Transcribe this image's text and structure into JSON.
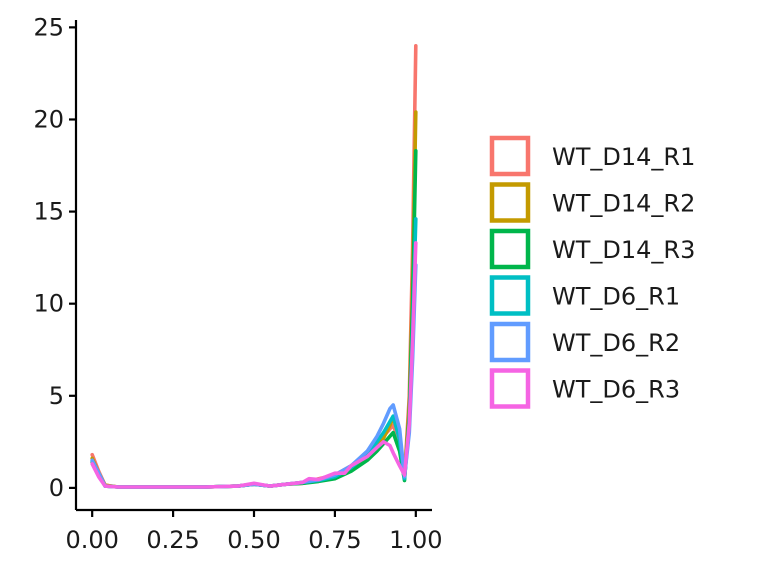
{
  "chart_data": {
    "type": "line",
    "title": "",
    "xlabel": "",
    "ylabel": "",
    "xlim": [
      -0.05,
      1.05
    ],
    "ylim": [
      -1.2,
      25.4
    ],
    "x_ticks": [
      0,
      0.25,
      0.5,
      0.75,
      1.0
    ],
    "x_tick_labels": [
      "0.00",
      "0.25",
      "0.50",
      "0.75",
      "1.00"
    ],
    "y_ticks": [
      0,
      5,
      10,
      15,
      20,
      25
    ],
    "y_tick_labels": [
      "0",
      "5",
      "10",
      "15",
      "20",
      "25"
    ],
    "grid": false,
    "legend_position": "right",
    "series": [
      {
        "name": "WT_D14_R1",
        "color": "#F8766D",
        "x": [
          0,
          0.02,
          0.04,
          0.08,
          0.15,
          0.25,
          0.35,
          0.45,
          0.5,
          0.55,
          0.6,
          0.65,
          0.7,
          0.75,
          0.8,
          0.85,
          0.88,
          0.9,
          0.92,
          0.93,
          0.95,
          0.965,
          0.98,
          0.99,
          1.0
        ],
        "y": [
          1.8,
          0.9,
          0.15,
          0.05,
          0.05,
          0.05,
          0.05,
          0.1,
          0.2,
          0.1,
          0.2,
          0.3,
          0.5,
          0.7,
          1.2,
          1.8,
          2.4,
          2.8,
          3.2,
          3.4,
          2.5,
          0.6,
          5.0,
          13.0,
          24.0
        ]
      },
      {
        "name": "WT_D14_R2",
        "color": "#C49A00",
        "x": [
          0,
          0.02,
          0.04,
          0.08,
          0.15,
          0.25,
          0.35,
          0.45,
          0.5,
          0.55,
          0.6,
          0.65,
          0.7,
          0.75,
          0.8,
          0.85,
          0.88,
          0.9,
          0.92,
          0.93,
          0.95,
          0.965,
          0.98,
          0.99,
          1.0
        ],
        "y": [
          1.6,
          0.8,
          0.15,
          0.05,
          0.05,
          0.05,
          0.05,
          0.1,
          0.2,
          0.1,
          0.2,
          0.25,
          0.4,
          0.6,
          1.0,
          1.6,
          2.2,
          2.7,
          3.4,
          3.8,
          2.8,
          0.5,
          4.5,
          11.0,
          20.4
        ]
      },
      {
        "name": "WT_D14_R3",
        "color": "#00B64B",
        "x": [
          0,
          0.02,
          0.04,
          0.08,
          0.15,
          0.25,
          0.35,
          0.45,
          0.5,
          0.55,
          0.6,
          0.65,
          0.7,
          0.75,
          0.8,
          0.85,
          0.88,
          0.9,
          0.92,
          0.93,
          0.95,
          0.965,
          0.98,
          0.99,
          1.0
        ],
        "y": [
          1.4,
          0.7,
          0.1,
          0.05,
          0.05,
          0.05,
          0.05,
          0.1,
          0.2,
          0.1,
          0.2,
          0.25,
          0.35,
          0.5,
          0.9,
          1.5,
          2.0,
          2.4,
          2.8,
          3.0,
          2.0,
          0.4,
          4.0,
          10.0,
          18.3
        ]
      },
      {
        "name": "WT_D6_R1",
        "color": "#00BFC4",
        "x": [
          0,
          0.02,
          0.04,
          0.08,
          0.15,
          0.25,
          0.35,
          0.45,
          0.5,
          0.55,
          0.6,
          0.65,
          0.7,
          0.75,
          0.8,
          0.85,
          0.88,
          0.9,
          0.92,
          0.93,
          0.95,
          0.965,
          0.98,
          0.99,
          1.0
        ],
        "y": [
          1.5,
          0.8,
          0.1,
          0.05,
          0.05,
          0.05,
          0.05,
          0.1,
          0.2,
          0.1,
          0.2,
          0.3,
          0.4,
          0.6,
          1.1,
          1.8,
          2.5,
          3.0,
          3.6,
          3.9,
          2.6,
          0.5,
          3.5,
          8.5,
          14.6
        ]
      },
      {
        "name": "WT_D6_R2",
        "color": "#619CFF",
        "x": [
          0,
          0.02,
          0.04,
          0.08,
          0.15,
          0.25,
          0.35,
          0.45,
          0.5,
          0.55,
          0.6,
          0.65,
          0.7,
          0.75,
          0.8,
          0.85,
          0.88,
          0.9,
          0.92,
          0.93,
          0.95,
          0.965,
          0.98,
          0.99,
          1.0
        ],
        "y": [
          1.5,
          0.8,
          0.1,
          0.05,
          0.05,
          0.05,
          0.05,
          0.1,
          0.2,
          0.1,
          0.2,
          0.3,
          0.45,
          0.7,
          1.2,
          2.0,
          2.8,
          3.5,
          4.3,
          4.5,
          3.2,
          0.6,
          3.0,
          7.0,
          12.1
        ]
      },
      {
        "name": "WT_D6_R3",
        "color": "#F564E3",
        "x": [
          0,
          0.02,
          0.04,
          0.08,
          0.15,
          0.25,
          0.35,
          0.45,
          0.5,
          0.55,
          0.6,
          0.65,
          0.67,
          0.7,
          0.75,
          0.78,
          0.8,
          0.85,
          0.88,
          0.9,
          0.92,
          0.93,
          0.95,
          0.965,
          0.98,
          0.99,
          1.0
        ],
        "y": [
          1.3,
          0.6,
          0.1,
          0.05,
          0.05,
          0.05,
          0.05,
          0.1,
          0.25,
          0.1,
          0.2,
          0.3,
          0.5,
          0.45,
          0.8,
          0.8,
          1.2,
          1.7,
          2.2,
          2.5,
          2.3,
          1.9,
          1.2,
          0.7,
          3.5,
          8.0,
          13.3
        ]
      }
    ]
  }
}
